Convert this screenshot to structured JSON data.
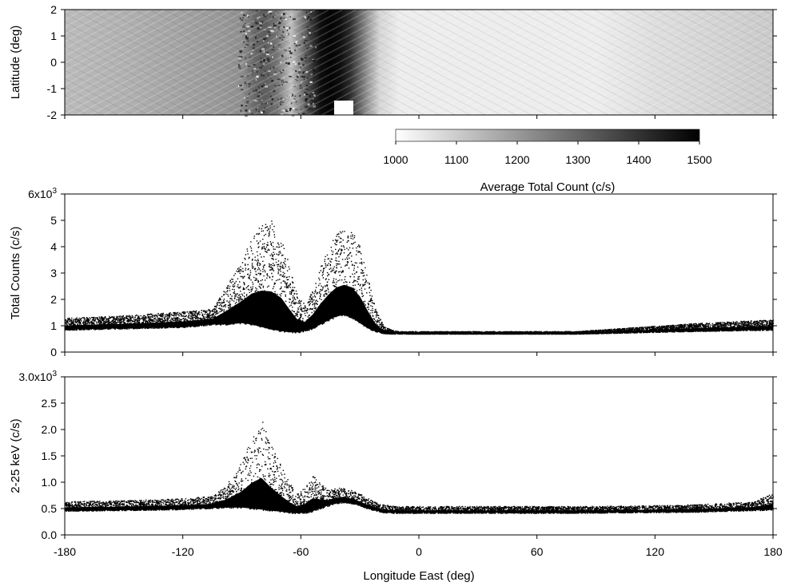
{
  "chart_data": [
    {
      "type": "heatmap",
      "title": "",
      "xlabel": "",
      "ylabel": "Latitude (deg)",
      "xlim": [
        -180,
        180
      ],
      "ylim": [
        -2,
        2
      ],
      "yticks": [
        2,
        1,
        0,
        -1,
        -2
      ],
      "yticklabels": [
        "2",
        "1",
        "0",
        "-1",
        "-2"
      ],
      "colorbar": {
        "label": "Average Total Count (c/s)",
        "range": [
          1000,
          1500
        ],
        "ticks": [
          1000,
          1100,
          1200,
          1300,
          1400,
          1500
        ],
        "ticklabels": [
          "1000",
          "1100",
          "1200",
          "1300",
          "1400",
          "1500"
        ],
        "low_color": "#ffffff",
        "high_color": "#000000"
      },
      "profile_lon": [
        -180,
        -150,
        -120,
        -100,
        -90,
        -83,
        -78,
        -72,
        -65,
        -60,
        -55,
        -50,
        -45,
        -40,
        -35,
        -30,
        -25,
        -20,
        -10,
        0,
        30,
        60,
        90,
        120,
        150,
        180
      ],
      "profile_val": [
        1130,
        1150,
        1180,
        1200,
        1220,
        1300,
        1320,
        1270,
        1120,
        1250,
        1380,
        1480,
        1500,
        1480,
        1420,
        1300,
        1180,
        1080,
        1030,
        1030,
        1030,
        1030,
        1030,
        1060,
        1080,
        1100
      ]
    },
    {
      "type": "scatter",
      "title": "",
      "xlabel": "",
      "ylabel": "Total Counts (c/s)",
      "xlim": [
        -180,
        180
      ],
      "ylim": [
        0,
        6000
      ],
      "yticks": [
        0,
        1000,
        2000,
        3000,
        4000,
        5000,
        6000
      ],
      "yticklabels": [
        "0",
        "1",
        "2",
        "3",
        "4",
        "5",
        "6x10"
      ],
      "ytick_exponent": "3",
      "envelope": {
        "x": [
          -180,
          -150,
          -120,
          -105,
          -98,
          -90,
          -85,
          -80,
          -75,
          -70,
          -66,
          -62,
          -58,
          -54,
          -50,
          -46,
          -42,
          -38,
          -34,
          -30,
          -26,
          -22,
          -18,
          -14,
          -10,
          0,
          40,
          80,
          110,
          140,
          180
        ],
        "base": [
          850,
          900,
          950,
          1050,
          1050,
          1100,
          1050,
          950,
          850,
          800,
          750,
          750,
          800,
          900,
          1050,
          1200,
          1350,
          1400,
          1300,
          1100,
          900,
          780,
          720,
          700,
          700,
          700,
          700,
          700,
          750,
          800,
          850
        ],
        "upper": [
          1300,
          1400,
          1550,
          1650,
          2500,
          3500,
          4400,
          4900,
          5000,
          4400,
          3300,
          2200,
          1800,
          2400,
          3300,
          4000,
          4500,
          4700,
          4600,
          4000,
          2800,
          1600,
          1000,
          850,
          800,
          800,
          800,
          800,
          950,
          1100,
          1250
        ]
      }
    },
    {
      "type": "scatter",
      "title": "",
      "xlabel": "Longitude East (deg)",
      "ylabel": "2-25 keV (c/s)",
      "xlim": [
        -180,
        180
      ],
      "ylim": [
        0,
        3000
      ],
      "xticks": [
        -180,
        -120,
        -60,
        0,
        60,
        120,
        180
      ],
      "xticklabels": [
        "-180",
        "-120",
        "-60",
        "0",
        "60",
        "120",
        "180"
      ],
      "yticks": [
        0,
        500,
        1000,
        1500,
        2000,
        2500,
        3000
      ],
      "yticklabels": [
        "0.0",
        "0.5",
        "1.0",
        "1.5",
        "2.0",
        "2.5",
        "3.0x10"
      ],
      "ytick_exponent": "3",
      "envelope": {
        "x": [
          -180,
          -150,
          -120,
          -105,
          -98,
          -90,
          -85,
          -80,
          -75,
          -70,
          -66,
          -62,
          -58,
          -54,
          -50,
          -46,
          -42,
          -38,
          -34,
          -30,
          -26,
          -22,
          -18,
          -14,
          -10,
          0,
          40,
          80,
          110,
          140,
          170,
          180
        ],
        "base": [
          460,
          470,
          490,
          510,
          520,
          520,
          500,
          480,
          460,
          440,
          420,
          410,
          420,
          450,
          500,
          560,
          600,
          620,
          600,
          560,
          500,
          460,
          430,
          420,
          420,
          420,
          420,
          420,
          430,
          440,
          470,
          480
        ],
        "upper": [
          640,
          660,
          700,
          740,
          950,
          1400,
          1900,
          2200,
          1700,
          1300,
          1000,
          800,
          900,
          1150,
          1000,
          850,
          900,
          900,
          850,
          780,
          700,
          620,
          580,
          560,
          550,
          550,
          550,
          550,
          560,
          580,
          640,
          800
        ]
      }
    }
  ]
}
